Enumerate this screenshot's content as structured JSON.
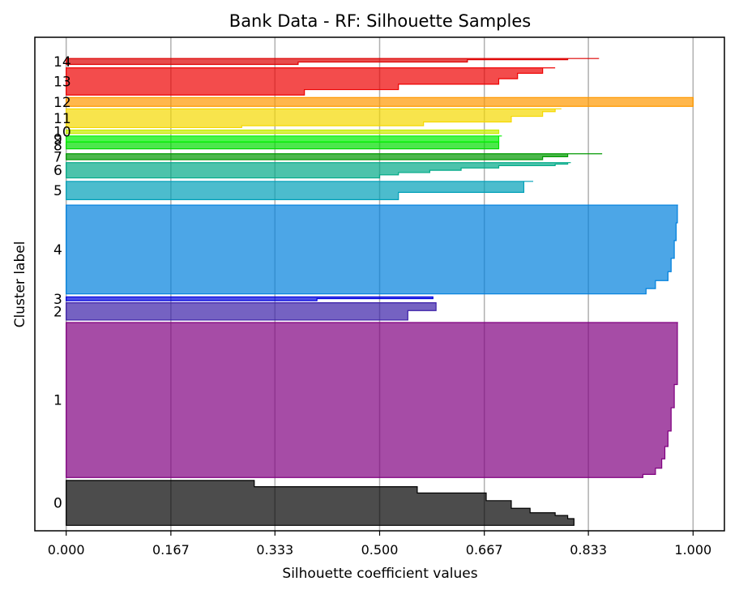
{
  "chart_data": {
    "type": "silhouette",
    "title": "Bank Data - RF: Silhouette Samples",
    "xlabel": "Silhouette coefficient values",
    "ylabel": "Cluster label",
    "xlim": [
      -0.05,
      1.05
    ],
    "ylim": [
      0,
      1
    ],
    "x_ticks": [
      0.0,
      0.167,
      0.333,
      0.5,
      0.667,
      0.833,
      1.0
    ],
    "x_tick_labels": [
      "0.000",
      "0.167",
      "0.333",
      "0.500",
      "0.667",
      "0.833",
      "1.000"
    ],
    "grid": "vertical",
    "clusters": [
      {
        "label": "0",
        "color": "#000000",
        "y_range": [
          0.011,
          0.102
        ],
        "profile": [
          [
            0,
            0.81
          ],
          [
            0.15,
            0.8
          ],
          [
            0.22,
            0.78
          ],
          [
            0.28,
            0.74
          ],
          [
            0.38,
            0.71
          ],
          [
            0.55,
            0.67
          ],
          [
            0.72,
            0.56
          ],
          [
            0.86,
            0.3
          ],
          [
            1,
            0.3
          ]
        ]
      },
      {
        "label": "1",
        "color": "#800080",
        "y_range": [
          0.108,
          0.422
        ],
        "profile": [
          [
            0,
            0.92
          ],
          [
            0.02,
            0.94
          ],
          [
            0.06,
            0.95
          ],
          [
            0.12,
            0.955
          ],
          [
            0.2,
            0.96
          ],
          [
            0.3,
            0.965
          ],
          [
            0.45,
            0.97
          ],
          [
            0.6,
            0.975
          ],
          [
            1,
            0.976
          ]
        ]
      },
      {
        "label": "2",
        "color": "#3b1fa8",
        "y_range": [
          0.427,
          0.462
        ],
        "profile": [
          [
            0,
            0.545
          ],
          [
            0.5,
            0.545
          ],
          [
            0.55,
            0.59
          ],
          [
            1,
            0.59
          ]
        ]
      },
      {
        "label": "3",
        "color": "#0000dd",
        "y_range": [
          0.466,
          0.474
        ],
        "profile": [
          [
            0,
            0.4
          ],
          [
            0.5,
            0.4
          ],
          [
            0.55,
            0.585
          ],
          [
            1,
            0.585
          ]
        ]
      },
      {
        "label": "4",
        "color": "#0080dd",
        "y_range": [
          0.48,
          0.66
        ],
        "profile": [
          [
            0,
            0.925
          ],
          [
            0.06,
            0.94
          ],
          [
            0.15,
            0.96
          ],
          [
            0.25,
            0.965
          ],
          [
            0.4,
            0.97
          ],
          [
            0.6,
            0.973
          ],
          [
            0.8,
            0.975
          ],
          [
            1,
            0.976
          ]
        ]
      },
      {
        "label": "5",
        "color": "#00a0b8",
        "y_range": [
          0.671,
          0.708
        ],
        "profile": [
          [
            0,
            0.53
          ],
          [
            0.3,
            0.53
          ],
          [
            0.4,
            0.73
          ],
          [
            0.85,
            0.73
          ],
          [
            1,
            0.745
          ]
        ]
      },
      {
        "label": "6",
        "color": "#00aa88",
        "y_range": [
          0.715,
          0.746
        ],
        "profile": [
          [
            0,
            0.5
          ],
          [
            0.2,
            0.53
          ],
          [
            0.35,
            0.58
          ],
          [
            0.5,
            0.63
          ],
          [
            0.65,
            0.69
          ],
          [
            0.8,
            0.78
          ],
          [
            0.9,
            0.8
          ],
          [
            1,
            0.805
          ]
        ]
      },
      {
        "label": "7",
        "color": "#009a00",
        "y_range": [
          0.752,
          0.764
        ],
        "profile": [
          [
            0,
            0.76
          ],
          [
            0.5,
            0.8
          ],
          [
            1,
            0.855
          ]
        ]
      },
      {
        "label": "8",
        "color": "#00dd00",
        "y_range": [
          0.774,
          0.788
        ],
        "profile": [
          [
            0,
            0.69
          ],
          [
            1,
            0.69
          ]
        ]
      },
      {
        "label": "9",
        "color": "#00f000",
        "y_range": [
          0.788,
          0.8
        ],
        "profile": [
          [
            0,
            0.69
          ],
          [
            1,
            0.695
          ]
        ]
      },
      {
        "label": "10",
        "color": "#c8ee00",
        "y_range": [
          0.805,
          0.812
        ],
        "profile": [
          [
            0,
            0.69
          ],
          [
            1,
            0.69
          ]
        ]
      },
      {
        "label": "11",
        "color": "#f5d800",
        "y_range": [
          0.817,
          0.855
        ],
        "profile": [
          [
            0,
            0.28
          ],
          [
            0.1,
            0.57
          ],
          [
            0.3,
            0.71
          ],
          [
            0.6,
            0.76
          ],
          [
            0.85,
            0.78
          ],
          [
            1,
            0.79
          ]
        ]
      },
      {
        "label": "12",
        "color": "#ff9900",
        "y_range": [
          0.86,
          0.878
        ],
        "profile": [
          [
            0,
            1.0
          ],
          [
            1,
            1.0
          ]
        ]
      },
      {
        "label": "13",
        "color": "#ee0000",
        "y_range": [
          0.883,
          0.938
        ],
        "profile": [
          [
            0,
            0.38
          ],
          [
            0.2,
            0.53
          ],
          [
            0.4,
            0.69
          ],
          [
            0.6,
            0.72
          ],
          [
            0.8,
            0.76
          ],
          [
            1,
            0.78
          ]
        ]
      },
      {
        "label": "14",
        "color": "#dd0000",
        "y_range": [
          0.945,
          0.957
        ],
        "profile": [
          [
            0,
            0.37
          ],
          [
            0.4,
            0.64
          ],
          [
            0.8,
            0.8
          ],
          [
            1,
            0.85
          ]
        ]
      }
    ]
  }
}
